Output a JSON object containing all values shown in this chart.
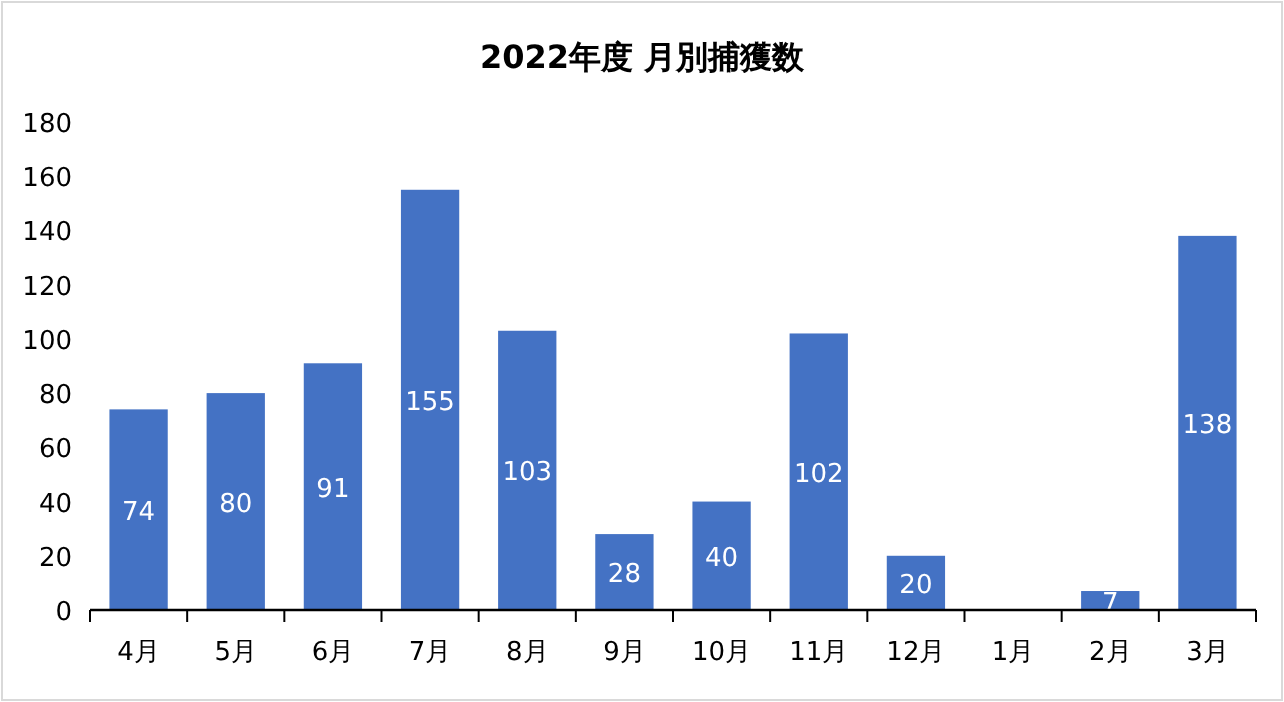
{
  "chart_data": {
    "type": "bar",
    "title": "2022年度 月別捕獲数",
    "categories": [
      "4月",
      "5月",
      "6月",
      "7月",
      "8月",
      "9月",
      "10月",
      "11月",
      "12月",
      "1月",
      "2月",
      "3月"
    ],
    "values": [
      74,
      80,
      91,
      155,
      103,
      28,
      40,
      102,
      20,
      0,
      7,
      138
    ],
    "color": "#4472c4",
    "ylim": [
      0,
      180
    ],
    "yticks": [
      0,
      20,
      40,
      60,
      80,
      100,
      120,
      140,
      160,
      180
    ],
    "grid": false,
    "value_labels": [
      "74",
      "80",
      "91",
      "155",
      "103",
      "28",
      "40",
      "102",
      "20",
      null,
      "7",
      "138"
    ]
  }
}
